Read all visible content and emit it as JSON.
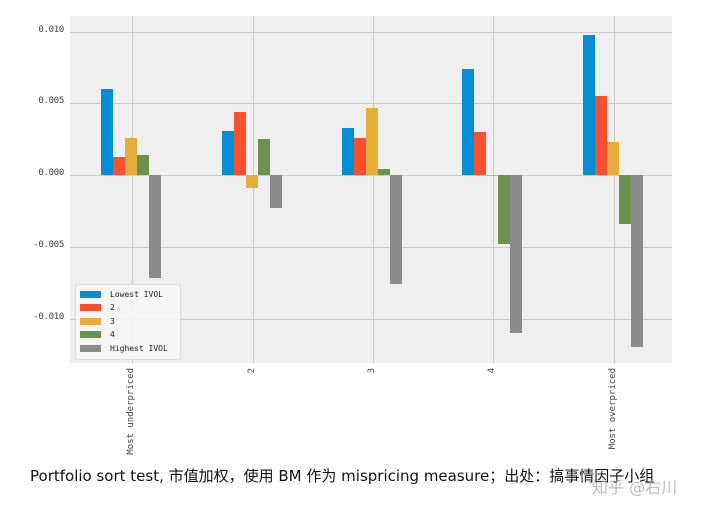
{
  "chart_data": {
    "type": "bar",
    "title": "",
    "xlabel": "",
    "ylabel": "",
    "categories": [
      "Most underpriced",
      "2",
      "3",
      "4",
      "Most overpriced"
    ],
    "series": [
      {
        "name": "Lowest IVOL",
        "color": "#008fd5",
        "values": [
          0.006,
          0.0031,
          0.0033,
          0.0074,
          0.0098
        ]
      },
      {
        "name": "2",
        "color": "#fc4f30",
        "values": [
          0.0013,
          0.0044,
          0.0026,
          0.003,
          0.0055
        ]
      },
      {
        "name": "3",
        "color": "#e5ae38",
        "values": [
          0.0026,
          -0.0009,
          0.0047,
          0.0,
          0.0023
        ]
      },
      {
        "name": "4",
        "color": "#6d904f",
        "values": [
          0.0014,
          0.0025,
          0.0004,
          -0.0048,
          -0.0034
        ]
      },
      {
        "name": "Highest IVOL",
        "color": "#8b8b8b",
        "values": [
          -0.0072,
          -0.0023,
          -0.0076,
          -0.011,
          -0.012
        ]
      }
    ],
    "yticks": [
      "0.010",
      "0.005",
      "0.000",
      "-0.005",
      "-0.010"
    ],
    "ytick_values": [
      0.01,
      0.005,
      0.0,
      -0.005,
      -0.01
    ],
    "ylim": [
      -0.0131,
      0.0111
    ],
    "grid": true,
    "legend_position": "lower left",
    "style": "fivethirtyeight"
  },
  "caption": {
    "text": "Portfolio sort test, 市值加权，使用 BM 作为 mispricing measure；出处：搞事情因子小组"
  },
  "watermark": {
    "text": "知乎 @右川"
  }
}
